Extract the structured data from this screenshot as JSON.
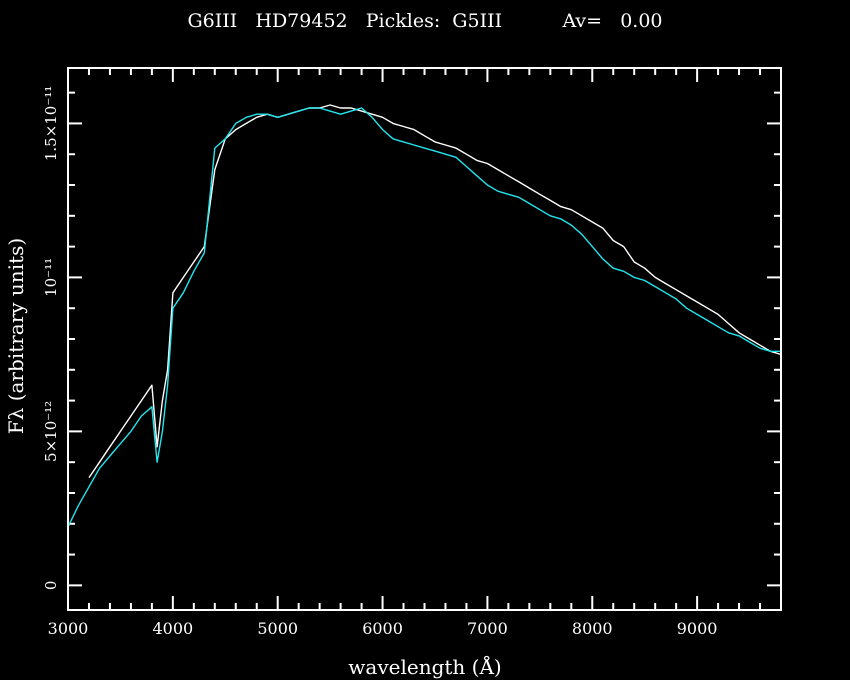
{
  "chart_data": {
    "type": "line",
    "title": "G6III   HD79452   Pickles:  G5III          Av=   0.00",
    "xlabel": "wavelength (Å)",
    "ylabel": "Fλ (arbitrary units)",
    "xlim": [
      3000,
      9800
    ],
    "ylim": [
      -8e-13,
      1.68e-11
    ],
    "x_ticks": [
      3000,
      4000,
      5000,
      6000,
      7000,
      8000,
      9000
    ],
    "y_ticks": [
      {
        "value": 0,
        "label": "0"
      },
      {
        "value": 5e-12,
        "label": "5×10⁻¹²"
      },
      {
        "value": 1e-11,
        "label": "10⁻¹¹"
      },
      {
        "value": 1.5e-11,
        "label": "1.5×10⁻¹¹"
      }
    ],
    "grid": false,
    "series": [
      {
        "color": "#ffffff",
        "x": [
          3200,
          3300,
          3400,
          3500,
          3600,
          3700,
          3800,
          3850,
          3900,
          3950,
          4000,
          4100,
          4200,
          4300,
          4400,
          4500,
          4600,
          4700,
          4800,
          4900,
          5000,
          5100,
          5200,
          5300,
          5400,
          5500,
          5600,
          5700,
          5800,
          5900,
          6000,
          6100,
          6200,
          6300,
          6400,
          6500,
          6600,
          6700,
          6800,
          6900,
          7000,
          7100,
          7200,
          7300,
          7400,
          7500,
          7600,
          7700,
          7800,
          7900,
          8000,
          8100,
          8200,
          8300,
          8400,
          8500,
          8600,
          8700,
          8800,
          8900,
          9000,
          9100,
          9200,
          9300,
          9400,
          9500,
          9600,
          9700,
          9800
        ],
        "y": [
          3.5e-12,
          4e-12,
          4.5e-12,
          5e-12,
          5.5e-12,
          6e-12,
          6.5e-12,
          4.5e-12,
          6e-12,
          7e-12,
          9.5e-12,
          1e-11,
          1.05e-11,
          1.1e-11,
          1.35e-11,
          1.45e-11,
          1.48e-11,
          1.5e-11,
          1.52e-11,
          1.53e-11,
          1.52e-11,
          1.53e-11,
          1.54e-11,
          1.55e-11,
          1.55e-11,
          1.56e-11,
          1.55e-11,
          1.55e-11,
          1.54e-11,
          1.53e-11,
          1.52e-11,
          1.5e-11,
          1.49e-11,
          1.48e-11,
          1.46e-11,
          1.44e-11,
          1.43e-11,
          1.42e-11,
          1.4e-11,
          1.38e-11,
          1.37e-11,
          1.35e-11,
          1.33e-11,
          1.31e-11,
          1.29e-11,
          1.27e-11,
          1.25e-11,
          1.23e-11,
          1.22e-11,
          1.2e-11,
          1.18e-11,
          1.16e-11,
          1.12e-11,
          1.1e-11,
          1.05e-11,
          1.03e-11,
          1e-11,
          9.8e-12,
          9.6e-12,
          9.4e-12,
          9.2e-12,
          9e-12,
          8.8e-12,
          8.5e-12,
          8.2e-12,
          8e-12,
          7.8e-12,
          7.6e-12,
          7.5e-12
        ]
      },
      {
        "color": "#22e5ee",
        "x": [
          3000,
          3100,
          3200,
          3300,
          3400,
          3500,
          3600,
          3700,
          3800,
          3850,
          3900,
          3950,
          4000,
          4100,
          4200,
          4300,
          4400,
          4500,
          4600,
          4700,
          4800,
          4900,
          5000,
          5100,
          5200,
          5300,
          5400,
          5500,
          5600,
          5700,
          5800,
          5900,
          6000,
          6100,
          6200,
          6300,
          6400,
          6500,
          6600,
          6700,
          6800,
          6900,
          7000,
          7100,
          7200,
          7300,
          7400,
          7500,
          7600,
          7700,
          7800,
          7900,
          8000,
          8100,
          8200,
          8300,
          8400,
          8500,
          8600,
          8700,
          8800,
          8900,
          9000,
          9100,
          9200,
          9300,
          9400,
          9500,
          9600,
          9700,
          9800
        ],
        "y": [
          1.9e-12,
          2.6e-12,
          3.2e-12,
          3.8e-12,
          4.2e-12,
          4.6e-12,
          5e-12,
          5.5e-12,
          5.8e-12,
          4e-12,
          5e-12,
          6.5e-12,
          9e-12,
          9.5e-12,
          1.02e-11,
          1.08e-11,
          1.42e-11,
          1.45e-11,
          1.5e-11,
          1.52e-11,
          1.53e-11,
          1.53e-11,
          1.52e-11,
          1.53e-11,
          1.54e-11,
          1.55e-11,
          1.55e-11,
          1.54e-11,
          1.53e-11,
          1.54e-11,
          1.55e-11,
          1.52e-11,
          1.48e-11,
          1.45e-11,
          1.44e-11,
          1.43e-11,
          1.42e-11,
          1.41e-11,
          1.4e-11,
          1.39e-11,
          1.36e-11,
          1.33e-11,
          1.3e-11,
          1.28e-11,
          1.27e-11,
          1.26e-11,
          1.24e-11,
          1.22e-11,
          1.2e-11,
          1.19e-11,
          1.17e-11,
          1.14e-11,
          1.1e-11,
          1.06e-11,
          1.03e-11,
          1.02e-11,
          1e-11,
          9.9e-12,
          9.7e-12,
          9.5e-12,
          9.3e-12,
          9e-12,
          8.8e-12,
          8.6e-12,
          8.4e-12,
          8.2e-12,
          8.1e-12,
          7.9e-12,
          7.7e-12,
          7.6e-12,
          7.6e-12
        ]
      }
    ]
  }
}
